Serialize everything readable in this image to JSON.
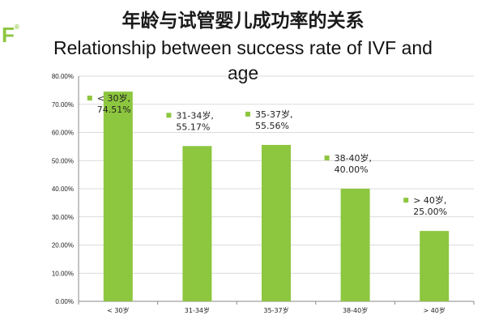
{
  "logo": {
    "mark": "F",
    "reg": "®"
  },
  "title_cn": "年龄与试管婴儿成功率的关系",
  "title_en_lines": [
    "Relationship between success rate of IVF and",
    "age"
  ],
  "colors": {
    "bar": "#8dc63f",
    "grid": "#cfcfcf",
    "axis": "#888888",
    "text": "#222222"
  },
  "chart_data": {
    "type": "bar",
    "categories": [
      "< 30岁",
      "31-34岁",
      "35-37岁",
      "38-40岁",
      "> 40岁"
    ],
    "values": [
      74.51,
      55.17,
      55.56,
      40.0,
      25.0
    ],
    "data_labels": [
      [
        "< 30岁,",
        "74.51%"
      ],
      [
        "31-34岁,",
        "55.17%"
      ],
      [
        "35-37岁,",
        "55.56%"
      ],
      [
        "38-40岁,",
        "40.00%"
      ],
      [
        "> 40岁,",
        "25.00%"
      ]
    ],
    "y_ticks": [
      "0.00%",
      "10.00%",
      "20.00%",
      "30.00%",
      "40.00%",
      "50.00%",
      "60.00%",
      "70.00%",
      "80.00%"
    ],
    "ylim": [
      0,
      80
    ],
    "grid": true,
    "title": "年龄与试管婴儿成功率的关系",
    "xlabel": "",
    "ylabel": ""
  }
}
